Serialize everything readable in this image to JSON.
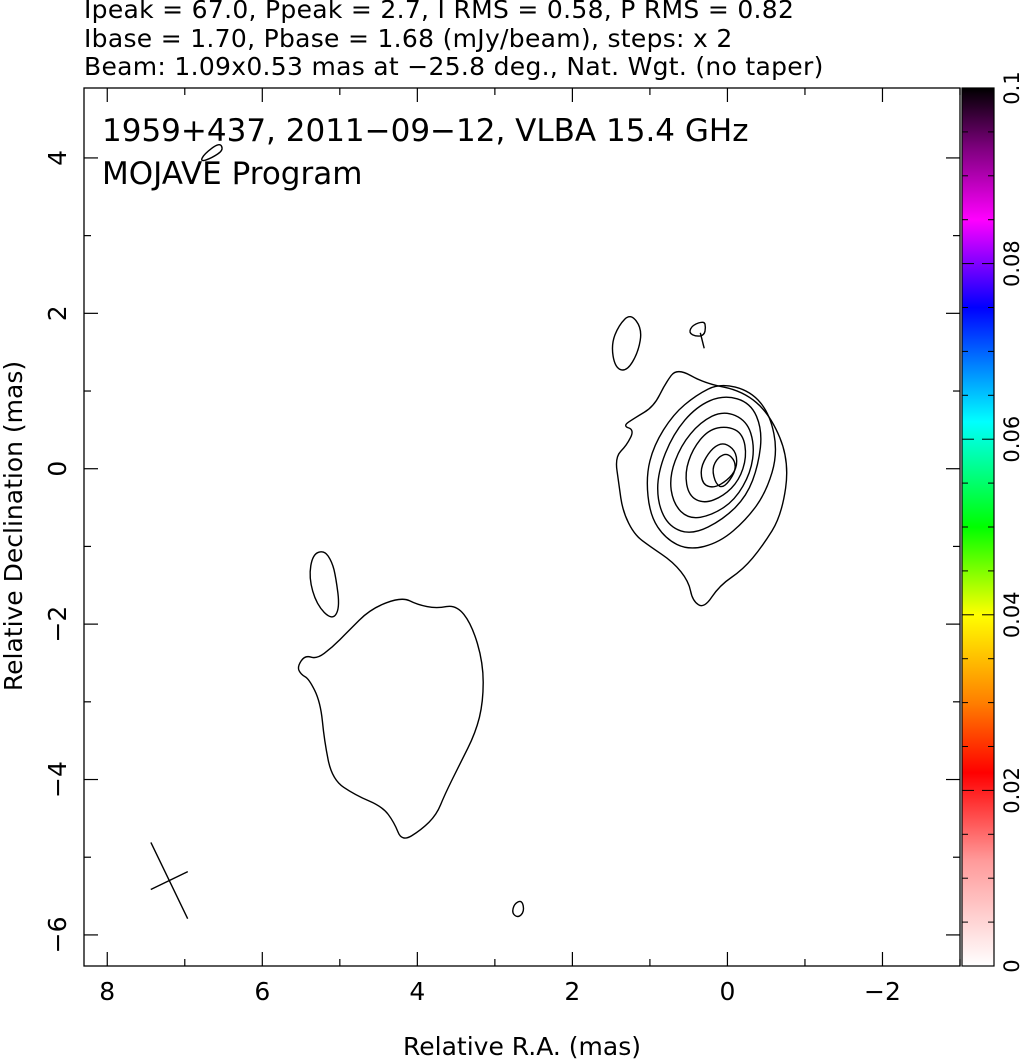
{
  "header": {
    "line1": "Ipeak = 67.0, Ppeak = 2.7, I RMS = 0.58, P RMS = 0.82",
    "line2": "Ibase = 1.70, Pbase = 1.68 (mJy/beam), steps: x 2",
    "line3": "Beam: 1.09x0.53 mas at −25.8 deg., Nat. Wgt. (no taper)"
  },
  "chart_data": {
    "type": "contour",
    "title_line1": "1959+437, 2011−09−12, VLBA 15.4 GHz",
    "title_line2": "MOJAVE Program",
    "xlabel": "Relative R.A. (mas)",
    "ylabel": "Relative Declination (mas)",
    "xlim": [
      8.3,
      -3.0
    ],
    "ylim": [
      -6.4,
      4.9
    ],
    "x_ticks": [
      {
        "value": 8,
        "label": "8"
      },
      {
        "value": 6,
        "label": "6"
      },
      {
        "value": 4,
        "label": "4"
      },
      {
        "value": 2,
        "label": "2"
      },
      {
        "value": 0,
        "label": "0"
      },
      {
        "value": -2,
        "label": "−2"
      }
    ],
    "y_ticks": [
      {
        "value": 4,
        "label": "4"
      },
      {
        "value": 2,
        "label": "2"
      },
      {
        "value": 0,
        "label": "0"
      },
      {
        "value": -2,
        "label": "−2"
      },
      {
        "value": -4,
        "label": "−4"
      },
      {
        "value": -6,
        "label": "−6"
      }
    ],
    "colorbar": {
      "min": 0,
      "max": 0.1,
      "ticks": [
        {
          "value": 0,
          "label": "0"
        },
        {
          "value": 0.02,
          "label": "0.02"
        },
        {
          "value": 0.04,
          "label": "0.04"
        },
        {
          "value": 0.06,
          "label": "0.06"
        },
        {
          "value": 0.08,
          "label": "0.08"
        },
        {
          "value": 0.1,
          "label": "0.1"
        }
      ],
      "stops": [
        {
          "value": 0.0,
          "color": "#ffffff"
        },
        {
          "value": 0.012,
          "color": "#ff9a9a"
        },
        {
          "value": 0.022,
          "color": "#ff0000"
        },
        {
          "value": 0.03,
          "color": "#ff7f00"
        },
        {
          "value": 0.04,
          "color": "#ffff00"
        },
        {
          "value": 0.05,
          "color": "#00ff00"
        },
        {
          "value": 0.062,
          "color": "#00ffff"
        },
        {
          "value": 0.075,
          "color": "#0000ff"
        },
        {
          "value": 0.085,
          "color": "#ff00ff"
        },
        {
          "value": 0.093,
          "color": "#800080"
        },
        {
          "value": 0.1,
          "color": "#000000"
        }
      ]
    },
    "beam": {
      "major_mas": 1.09,
      "minor_mas": 0.53,
      "pa_deg": -25.8,
      "center": [
        7.2,
        -5.3
      ]
    },
    "contours": [
      {
        "name": "core-contour-1",
        "closed": true,
        "points": [
          [
            0.65,
            1.3
          ],
          [
            0.3,
            1.1
          ],
          [
            -0.2,
            1.0
          ],
          [
            -0.55,
            0.7
          ],
          [
            -0.8,
            0.1
          ],
          [
            -0.7,
            -0.6
          ],
          [
            -0.45,
            -1.0
          ],
          [
            -0.2,
            -1.3
          ],
          [
            0.1,
            -1.5
          ],
          [
            0.3,
            -1.8
          ],
          [
            0.45,
            -1.7
          ],
          [
            0.5,
            -1.45
          ],
          [
            0.7,
            -1.2
          ],
          [
            1.0,
            -1.0
          ],
          [
            1.2,
            -0.85
          ],
          [
            1.35,
            -0.55
          ],
          [
            1.4,
            -0.2
          ],
          [
            1.45,
            0.15
          ],
          [
            1.3,
            0.3
          ],
          [
            1.2,
            0.5
          ],
          [
            1.35,
            0.55
          ],
          [
            1.2,
            0.65
          ],
          [
            0.95,
            0.8
          ],
          [
            0.8,
            1.1
          ]
        ]
      },
      {
        "name": "core-contour-2",
        "closed": true,
        "points": [
          [
            0.1,
            1.1
          ],
          [
            -0.3,
            1.0
          ],
          [
            -0.55,
            0.7
          ],
          [
            -0.65,
            0.2
          ],
          [
            -0.5,
            -0.3
          ],
          [
            -0.25,
            -0.65
          ],
          [
            0.1,
            -0.95
          ],
          [
            0.5,
            -1.05
          ],
          [
            0.8,
            -0.9
          ],
          [
            1.0,
            -0.6
          ],
          [
            1.05,
            -0.1
          ],
          [
            0.95,
            0.3
          ],
          [
            0.7,
            0.7
          ],
          [
            0.4,
            0.95
          ]
        ]
      },
      {
        "name": "core-contour-3",
        "closed": true,
        "points": [
          [
            0.05,
            0.95
          ],
          [
            -0.3,
            0.85
          ],
          [
            -0.45,
            0.5
          ],
          [
            -0.4,
            0.05
          ],
          [
            -0.25,
            -0.35
          ],
          [
            0.05,
            -0.65
          ],
          [
            0.45,
            -0.85
          ],
          [
            0.75,
            -0.75
          ],
          [
            0.9,
            -0.45
          ],
          [
            0.9,
            -0.05
          ],
          [
            0.7,
            0.45
          ],
          [
            0.4,
            0.8
          ]
        ]
      },
      {
        "name": "core-contour-4",
        "closed": true,
        "points": [
          [
            0.05,
            0.75
          ],
          [
            -0.25,
            0.62
          ],
          [
            -0.35,
            0.3
          ],
          [
            -0.3,
            -0.05
          ],
          [
            -0.1,
            -0.4
          ],
          [
            0.2,
            -0.6
          ],
          [
            0.5,
            -0.65
          ],
          [
            0.7,
            -0.45
          ],
          [
            0.75,
            -0.1
          ],
          [
            0.6,
            0.3
          ],
          [
            0.35,
            0.6
          ]
        ]
      },
      {
        "name": "core-contour-5",
        "closed": true,
        "points": [
          [
            0.0,
            0.55
          ],
          [
            -0.2,
            0.45
          ],
          [
            -0.25,
            0.15
          ],
          [
            -0.15,
            -0.15
          ],
          [
            0.05,
            -0.35
          ],
          [
            0.3,
            -0.45
          ],
          [
            0.5,
            -0.35
          ],
          [
            0.55,
            -0.05
          ],
          [
            0.45,
            0.25
          ],
          [
            0.25,
            0.5
          ]
        ]
      },
      {
        "name": "core-contour-6",
        "closed": true,
        "points": [
          [
            0.0,
            0.32
          ],
          [
            -0.12,
            0.2
          ],
          [
            -0.12,
            0.0
          ],
          [
            0.0,
            -0.15
          ],
          [
            0.18,
            -0.25
          ],
          [
            0.32,
            -0.2
          ],
          [
            0.35,
            0.0
          ],
          [
            0.25,
            0.2
          ],
          [
            0.12,
            0.32
          ]
        ]
      },
      {
        "name": "core-contour-7",
        "closed": true,
        "points": [
          [
            0.0,
            0.2
          ],
          [
            -0.1,
            0.1
          ],
          [
            -0.1,
            -0.05
          ],
          [
            0.05,
            -0.25
          ],
          [
            0.15,
            -0.2
          ],
          [
            0.2,
            0.0
          ],
          [
            0.12,
            0.15
          ]
        ]
      },
      {
        "name": "north-blob-contour",
        "closed": true,
        "points": [
          [
            1.25,
            2.0
          ],
          [
            1.4,
            1.85
          ],
          [
            1.5,
            1.6
          ],
          [
            1.45,
            1.3
          ],
          [
            1.3,
            1.25
          ],
          [
            1.15,
            1.5
          ],
          [
            1.1,
            1.8
          ]
        ]
      },
      {
        "name": "north-small-contour",
        "closed": true,
        "points": [
          [
            0.3,
            1.9
          ],
          [
            0.45,
            1.85
          ],
          [
            0.5,
            1.75
          ],
          [
            0.4,
            1.7
          ],
          [
            0.3,
            1.72
          ],
          [
            0.28,
            1.82
          ]
        ]
      },
      {
        "name": "north-small-tail",
        "closed": false,
        "points": [
          [
            0.35,
            1.75
          ],
          [
            0.3,
            1.55
          ]
        ]
      },
      {
        "name": "mid-blob-contour",
        "closed": true,
        "points": [
          [
            5.2,
            -1.05
          ],
          [
            5.35,
            -1.1
          ],
          [
            5.4,
            -1.4
          ],
          [
            5.3,
            -1.75
          ],
          [
            5.1,
            -1.95
          ],
          [
            5.0,
            -1.8
          ],
          [
            5.05,
            -1.4
          ],
          [
            5.1,
            -1.2
          ]
        ]
      },
      {
        "name": "southern-lobe-contour",
        "closed": true,
        "points": [
          [
            4.2,
            -1.65
          ],
          [
            4.0,
            -1.75
          ],
          [
            3.75,
            -1.8
          ],
          [
            3.5,
            -1.75
          ],
          [
            3.3,
            -2.0
          ],
          [
            3.15,
            -2.5
          ],
          [
            3.15,
            -3.0
          ],
          [
            3.25,
            -3.4
          ],
          [
            3.45,
            -3.8
          ],
          [
            3.65,
            -4.2
          ],
          [
            3.75,
            -4.45
          ],
          [
            3.95,
            -4.65
          ],
          [
            4.2,
            -4.8
          ],
          [
            4.3,
            -4.55
          ],
          [
            4.45,
            -4.35
          ],
          [
            4.8,
            -4.2
          ],
          [
            5.1,
            -4.0
          ],
          [
            5.2,
            -3.5
          ],
          [
            5.25,
            -3.0
          ],
          [
            5.4,
            -2.7
          ],
          [
            5.5,
            -2.65
          ],
          [
            5.55,
            -2.55
          ],
          [
            5.45,
            -2.4
          ],
          [
            5.3,
            -2.45
          ],
          [
            5.1,
            -2.3
          ],
          [
            4.9,
            -2.1
          ],
          [
            4.6,
            -1.8
          ]
        ]
      },
      {
        "name": "south-small-contour",
        "closed": true,
        "points": [
          [
            2.65,
            -5.55
          ],
          [
            2.75,
            -5.6
          ],
          [
            2.78,
            -5.72
          ],
          [
            2.7,
            -5.78
          ],
          [
            2.62,
            -5.7
          ]
        ]
      },
      {
        "name": "beam-area-contour",
        "closed": true,
        "points": [
          [
            6.55,
            4.2
          ],
          [
            6.75,
            4.05
          ],
          [
            6.8,
            3.95
          ],
          [
            6.65,
            4.0
          ],
          [
            6.5,
            4.1
          ]
        ]
      }
    ]
  }
}
